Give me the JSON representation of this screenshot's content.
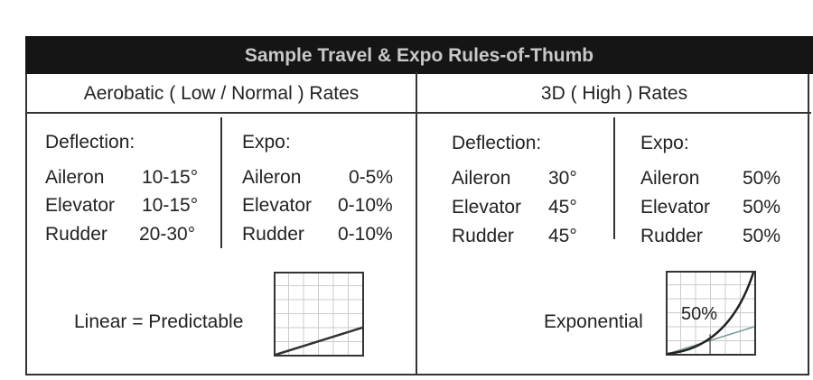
{
  "title": "Sample Travel & Expo Rules-of-Thumb",
  "aerobatic": {
    "header": "Aerobatic ( Low / Normal ) Rates",
    "deflection_label": "Deflection:",
    "expo_label": "Expo:",
    "deflection": [
      {
        "surface": "Aileron",
        "value": "10-15°"
      },
      {
        "surface": "Elevator",
        "value": "10-15°"
      },
      {
        "surface": "Rudder",
        "value": "20-30°"
      }
    ],
    "expo": [
      {
        "surface": "Aileron",
        "value": "0-5%"
      },
      {
        "surface": "Elevator",
        "value": "0-10%"
      },
      {
        "surface": "Rudder",
        "value": "0-10%"
      }
    ],
    "curve_label": "Linear = Predictable"
  },
  "threed": {
    "header": "3D ( High ) Rates",
    "deflection_label": "Deflection:",
    "expo_label": "Expo:",
    "deflection": [
      {
        "surface": "Aileron",
        "value": "30°"
      },
      {
        "surface": "Elevator",
        "value": "45°"
      },
      {
        "surface": "Rudder",
        "value": "45°"
      }
    ],
    "expo": [
      {
        "surface": "Aileron",
        "value": "50%"
      },
      {
        "surface": "Elevator",
        "value": "50%"
      },
      {
        "surface": "Rudder",
        "value": "50%"
      }
    ],
    "curve_label": "Exponential",
    "curve_value": "50%"
  }
}
